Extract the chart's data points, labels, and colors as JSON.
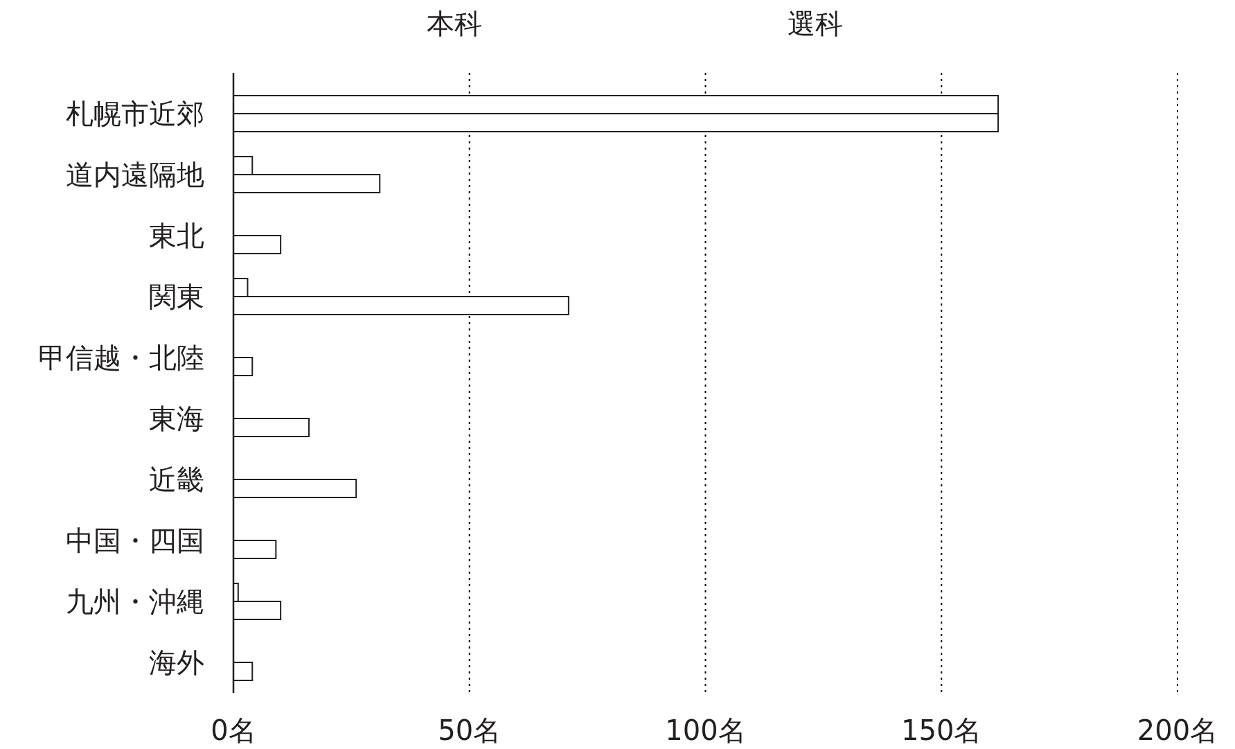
{
  "chart_data": {
    "type": "bar",
    "orientation": "horizontal",
    "categories": [
      "札幌市近郊",
      "道内遠隔地",
      "東北",
      "関東",
      "甲信越・北陸",
      "東海",
      "近畿",
      "中国・四国",
      "九州・沖縄",
      "海外"
    ],
    "series": [
      {
        "name": "本科",
        "color": "#ffffff",
        "values": [
          162,
          4,
          null,
          3,
          null,
          null,
          null,
          null,
          1,
          null
        ]
      },
      {
        "name": "選科",
        "color": "#ffffff",
        "values": [
          162,
          31,
          10,
          71,
          4,
          16,
          26,
          9,
          10,
          4
        ]
      }
    ],
    "xlim": [
      0,
      200
    ],
    "xticks": [
      {
        "value": 0,
        "label": "0名"
      },
      {
        "value": 50,
        "label": "50名"
      },
      {
        "value": 100,
        "label": "100名"
      },
      {
        "value": 150,
        "label": "150名"
      },
      {
        "value": 200,
        "label": "200名"
      }
    ],
    "grid": "x",
    "legend": "top"
  }
}
